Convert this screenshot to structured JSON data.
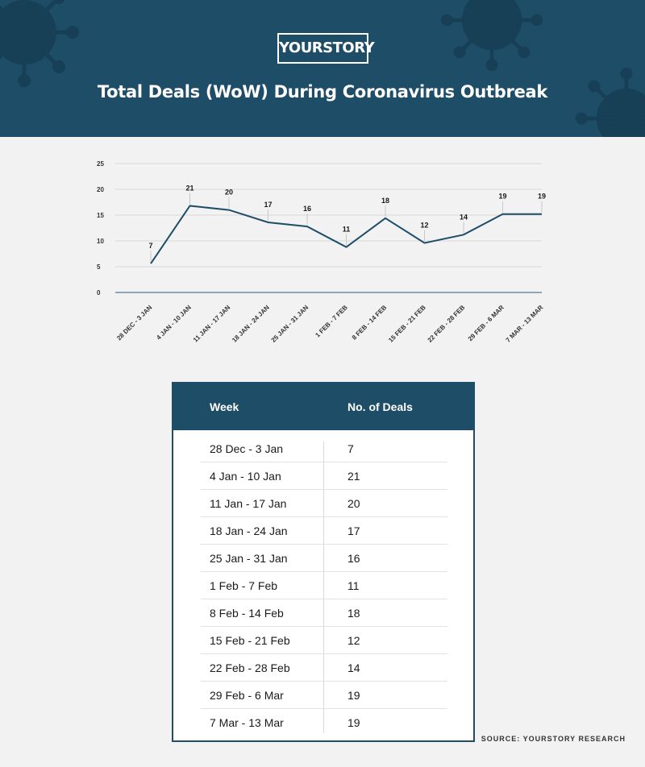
{
  "header": {
    "logo": "YOURSTORY",
    "title": "Total Deals (WoW) During Coronavirus Outbreak"
  },
  "colors": {
    "primary": "#1e4d68",
    "background": "#f2f2f2",
    "line": "#1e4d68"
  },
  "chart_data": {
    "type": "line",
    "title": "Total Deals (WoW) During Coronavirus Outbreak",
    "categories": [
      "28 DEC - 3 JAN",
      "4 JAN - 10 JAN",
      "11 JAN - 17 JAN",
      "18 JAN - 24 JAN",
      "25 JAN - 31 JAN",
      "1 FEB - 7 FEB",
      "8 FEB - 14 FEB",
      "15 FEB - 21 FEB",
      "22 FEB - 28 FEB",
      "29 FEB - 6 MAR",
      "7 MAR - 13 MAR"
    ],
    "series": [
      {
        "values": [
          7,
          21,
          20,
          17,
          16,
          11,
          18,
          12,
          14,
          19,
          19
        ]
      }
    ],
    "yticks": [
      0,
      5,
      10,
      15,
      20,
      25
    ],
    "ylim": [
      0,
      25
    ],
    "grid": true,
    "legend": "none"
  },
  "table": {
    "headers": {
      "week": "Week",
      "deals": "No. of Deals"
    },
    "rows": [
      {
        "week": "28 Dec - 3 Jan",
        "deals": "7"
      },
      {
        "week": "4 Jan - 10 Jan",
        "deals": "21"
      },
      {
        "week": "11 Jan - 17 Jan",
        "deals": "20"
      },
      {
        "week": "18 Jan - 24 Jan",
        "deals": "17"
      },
      {
        "week": "25 Jan - 31 Jan",
        "deals": "16"
      },
      {
        "week": "1 Feb - 7 Feb",
        "deals": "11"
      },
      {
        "week": "8 Feb - 14 Feb",
        "deals": "18"
      },
      {
        "week": "15 Feb - 21 Feb",
        "deals": "12"
      },
      {
        "week": "22 Feb - 28 Feb",
        "deals": "14"
      },
      {
        "week": "29 Feb - 6 Mar",
        "deals": "19"
      },
      {
        "week": "7 Mar - 13 Mar",
        "deals": "19"
      }
    ]
  },
  "footer": {
    "source": "SOURCE: YOURSTORY RESEARCH"
  }
}
